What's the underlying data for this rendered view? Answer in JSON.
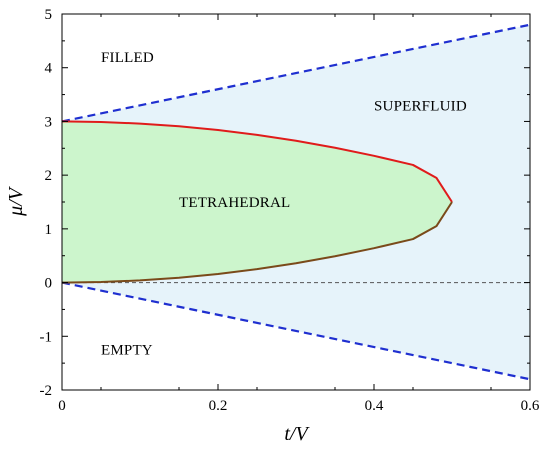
{
  "chart_data": {
    "type": "line",
    "title": "",
    "xlabel": "t/V",
    "ylabel": "μ/V",
    "xlim": [
      0,
      0.6
    ],
    "ylim": [
      -2,
      5
    ],
    "grid": false,
    "x_ticks": [
      "0",
      "0.2",
      "0.4",
      "0.6"
    ],
    "y_ticks": [
      "-2",
      "-1",
      "0",
      "1",
      "2",
      "3",
      "4",
      "5"
    ],
    "series": [
      {
        "line_style": "dashed",
        "color": "#1f2fd0",
        "x": [
          0,
          0.6
        ],
        "y": [
          3,
          4.8
        ]
      },
      {
        "line_style": "dashed",
        "color": "#1f2fd0",
        "x": [
          0,
          0.6
        ],
        "y": [
          0,
          -1.8
        ]
      },
      {
        "line_style": "dashed",
        "color": "#555555",
        "x": [
          0,
          0.6
        ],
        "y": [
          0,
          0
        ]
      },
      {
        "line_style": "solid",
        "color": "#e01b1b",
        "x": [
          0,
          0.05,
          0.1,
          0.15,
          0.2,
          0.25,
          0.3,
          0.35,
          0.4,
          0.45,
          0.48,
          0.5
        ],
        "y": [
          3.0,
          2.99,
          2.96,
          2.91,
          2.84,
          2.75,
          2.64,
          2.51,
          2.36,
          2.19,
          1.95,
          1.5
        ]
      },
      {
        "line_style": "solid",
        "color": "#7a4a1a",
        "x": [
          0,
          0.05,
          0.1,
          0.15,
          0.2,
          0.25,
          0.3,
          0.35,
          0.4,
          0.45,
          0.48,
          0.5
        ],
        "y": [
          0.0,
          0.01,
          0.04,
          0.09,
          0.16,
          0.25,
          0.36,
          0.49,
          0.64,
          0.81,
          1.05,
          1.5
        ]
      }
    ],
    "regions": [
      {
        "label": "FILLED",
        "x": 0.05,
        "y": 4.2,
        "fill": "#ffffff"
      },
      {
        "label": "SUPERFLUID",
        "x": 0.4,
        "y": 3.3,
        "fill": "#e6f3fa"
      },
      {
        "label": "TETRAHEDRAL",
        "x": 0.15,
        "y": 1.5,
        "fill": "#ccf5cc"
      },
      {
        "label": "EMPTY",
        "x": 0.05,
        "y": -1.25,
        "fill": "#ffffff"
      }
    ]
  }
}
